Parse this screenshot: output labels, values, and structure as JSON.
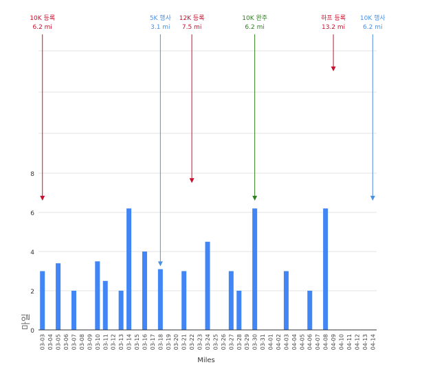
{
  "chart_data": {
    "type": "bar",
    "xlabel": "Miles",
    "ylabel": "마일",
    "y_ticks": [
      "2",
      "4",
      "6",
      "8"
    ],
    "ylim": [
      0,
      8.6
    ],
    "grid": true,
    "bar_color": "#4285f4",
    "categories": [
      "03-03",
      "03-04",
      "03-05",
      "03-06",
      "03-07",
      "03-08",
      "03-09",
      "03-10",
      "03-11",
      "03-12",
      "03-13",
      "03-14",
      "03-15",
      "03-16",
      "03-17",
      "03-18",
      "03-19",
      "03-20",
      "03-21",
      "03-22",
      "03-23",
      "03-24",
      "03-25",
      "03-26",
      "03-27",
      "03-28",
      "03-29",
      "03-30",
      "03-31",
      "04-01",
      "04-02",
      "04-03",
      "04-04",
      "04-05",
      "04-06",
      "04-07",
      "04-08",
      "04-09",
      "04-10",
      "04-11",
      "04-12",
      "04-13",
      "04-14"
    ],
    "values": [
      3.0,
      0,
      3.4,
      0,
      2.0,
      0,
      0,
      3.5,
      2.5,
      0,
      2.0,
      6.2,
      0,
      4.0,
      0,
      3.1,
      0,
      0,
      3.0,
      0,
      0,
      4.5,
      0,
      0,
      3.0,
      2.0,
      0,
      6.2,
      0,
      0,
      0,
      3.0,
      0,
      0,
      2.0,
      0,
      6.2,
      0,
      0,
      0,
      0,
      0,
      0
    ],
    "annotations": [
      {
        "category": "03-03",
        "line1": "10K 등록",
        "line2": "6.2 mi",
        "color": "#c8102e",
        "arrow_to": 6.6
      },
      {
        "category": "03-18",
        "line1": "5K 행사",
        "line2": "3.1 mi",
        "color": "#4a90e2",
        "arrow_to": 3.25
      },
      {
        "category": "03-22",
        "line1": "12K 등록",
        "line2": "7.5 mi",
        "color": "#c8102e",
        "arrow_to": 7.5
      },
      {
        "category": "03-30",
        "line1": "10K 완주",
        "line2": "6.2 mi",
        "color": "#2e7d1e",
        "arrow_to": 6.6
      },
      {
        "category": "04-09",
        "line1": "하프 등록",
        "line2": "13.2 mi",
        "color": "#c8102e",
        "arrow_to": 13.2
      },
      {
        "category": "04-14",
        "line1": "10K 행사",
        "line2": "6.2 mi",
        "color": "#4a90e2",
        "arrow_to": 6.6
      }
    ]
  }
}
